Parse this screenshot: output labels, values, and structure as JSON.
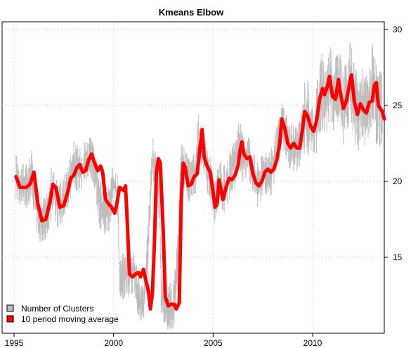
{
  "chart_data": {
    "type": "line",
    "title": "Kmeans Elbow",
    "xlabel": "",
    "ylabel": "",
    "xlim": [
      1994.4,
      2013.6
    ],
    "ylim": [
      10.0,
      30.5
    ],
    "x_ticks": [
      1995,
      2000,
      2005,
      2010
    ],
    "y_ticks": [
      15,
      20,
      25,
      30
    ],
    "y_axis_side": "right",
    "grid": true,
    "legend": "bottom-left",
    "series": [
      {
        "name": "Number of Clusters",
        "kind": "bar",
        "color": "#bdbdbd",
        "keypoints": [
          [
            1995.1,
            20.3
          ],
          [
            1995.4,
            19.6
          ],
          [
            1995.7,
            19.8
          ],
          [
            1995.9,
            20.5
          ],
          [
            1996.1,
            18.5
          ],
          [
            1996.3,
            17.3
          ],
          [
            1996.7,
            17.8
          ],
          [
            1996.9,
            19.6
          ],
          [
            1997.2,
            18.5
          ],
          [
            1997.5,
            18.8
          ],
          [
            1997.8,
            20.2
          ],
          [
            1998.0,
            21.1
          ],
          [
            1998.3,
            20.6
          ],
          [
            1998.6,
            21.4
          ],
          [
            1998.9,
            21.3
          ],
          [
            1999.1,
            20.5
          ],
          [
            1999.3,
            18.5
          ],
          [
            1999.6,
            18.0
          ],
          [
            1999.8,
            18.3
          ],
          [
            2000.0,
            19.8
          ],
          [
            2000.2,
            19.2
          ],
          [
            2000.3,
            13.7
          ],
          [
            2000.6,
            13.8
          ],
          [
            2000.9,
            14.1
          ],
          [
            2001.1,
            13.7
          ],
          [
            2001.3,
            12.0
          ],
          [
            2001.5,
            11.8
          ],
          [
            2001.7,
            15.0
          ],
          [
            2001.9,
            20.5
          ],
          [
            2002.0,
            21.4
          ],
          [
            2002.3,
            19.0
          ],
          [
            2002.4,
            12.3
          ],
          [
            2002.7,
            11.8
          ],
          [
            2002.9,
            11.8
          ],
          [
            2003.0,
            11.6
          ],
          [
            2003.2,
            14.5
          ],
          [
            2003.4,
            21.3
          ],
          [
            2003.6,
            20.6
          ],
          [
            2003.8,
            19.9
          ],
          [
            2004.1,
            20.5
          ],
          [
            2004.3,
            23.3
          ],
          [
            2004.5,
            21.8
          ],
          [
            2004.8,
            20.4
          ],
          [
            2005.0,
            19.3
          ],
          [
            2005.1,
            18.4
          ],
          [
            2005.3,
            20.1
          ],
          [
            2005.5,
            19.4
          ],
          [
            2005.7,
            19.8
          ],
          [
            2005.9,
            20.5
          ],
          [
            2006.1,
            21.2
          ],
          [
            2006.3,
            22.8
          ],
          [
            2006.5,
            21.5
          ],
          [
            2006.8,
            21.7
          ],
          [
            2007.0,
            20.6
          ],
          [
            2007.2,
            19.7
          ],
          [
            2007.4,
            20.0
          ],
          [
            2007.6,
            20.8
          ],
          [
            2007.9,
            20.6
          ],
          [
            2008.1,
            21.5
          ],
          [
            2008.3,
            22.6
          ],
          [
            2008.5,
            24.0
          ],
          [
            2008.7,
            22.6
          ],
          [
            2008.9,
            22.2
          ],
          [
            2009.1,
            22.3
          ],
          [
            2009.3,
            22.2
          ],
          [
            2009.5,
            23.8
          ],
          [
            2009.7,
            24.6
          ],
          [
            2009.9,
            23.6
          ],
          [
            2010.1,
            23.2
          ],
          [
            2010.3,
            25.1
          ],
          [
            2010.5,
            26.0
          ],
          [
            2010.7,
            25.6
          ],
          [
            2010.9,
            26.8
          ],
          [
            2011.0,
            25.6
          ],
          [
            2011.3,
            26.6
          ],
          [
            2011.5,
            24.8
          ],
          [
            2011.7,
            25.3
          ],
          [
            2011.9,
            26.9
          ],
          [
            2012.1,
            25.1
          ],
          [
            2012.3,
            24.5
          ],
          [
            2012.5,
            25.1
          ],
          [
            2012.7,
            24.6
          ],
          [
            2012.9,
            25.3
          ],
          [
            2013.0,
            26.6
          ],
          [
            2013.2,
            25.0
          ],
          [
            2013.4,
            24.8
          ],
          [
            2013.5,
            24.3
          ]
        ]
      },
      {
        "name": "10 period moving average",
        "kind": "line",
        "color": "#ff0000",
        "points": [
          [
            1995.1,
            20.3
          ],
          [
            1995.3,
            19.6
          ],
          [
            1995.6,
            19.6
          ],
          [
            1995.8,
            19.8
          ],
          [
            1996.0,
            20.6
          ],
          [
            1996.2,
            18.5
          ],
          [
            1996.4,
            17.4
          ],
          [
            1996.6,
            17.5
          ],
          [
            1996.8,
            18.6
          ],
          [
            1996.95,
            19.8
          ],
          [
            1997.1,
            19.6
          ],
          [
            1997.3,
            18.3
          ],
          [
            1997.5,
            18.4
          ],
          [
            1997.7,
            19.3
          ],
          [
            1997.85,
            20.2
          ],
          [
            1998.0,
            20.4
          ],
          [
            1998.15,
            20.9
          ],
          [
            1998.3,
            21.1
          ],
          [
            1998.45,
            20.6
          ],
          [
            1998.6,
            20.7
          ],
          [
            1998.75,
            21.4
          ],
          [
            1998.9,
            21.8
          ],
          [
            1999.05,
            21.2
          ],
          [
            1999.2,
            20.7
          ],
          [
            1999.35,
            21.0
          ],
          [
            1999.45,
            20.6
          ],
          [
            1999.6,
            18.8
          ],
          [
            1999.75,
            18.5
          ],
          [
            1999.9,
            18.3
          ],
          [
            2000.05,
            17.9
          ],
          [
            2000.15,
            18.4
          ],
          [
            2000.3,
            19.6
          ],
          [
            2000.5,
            19.4
          ],
          [
            2000.6,
            19.7
          ],
          [
            2000.7,
            17.0
          ],
          [
            2000.8,
            13.9
          ],
          [
            2000.95,
            13.7
          ],
          [
            2001.1,
            13.9
          ],
          [
            2001.25,
            14.0
          ],
          [
            2001.35,
            13.7
          ],
          [
            2001.5,
            14.2
          ],
          [
            2001.6,
            13.6
          ],
          [
            2001.75,
            12.8
          ],
          [
            2001.85,
            11.6
          ],
          [
            2001.95,
            12.6
          ],
          [
            2002.05,
            15.8
          ],
          [
            2002.15,
            20.5
          ],
          [
            2002.25,
            21.5
          ],
          [
            2002.35,
            21.2
          ],
          [
            2002.5,
            16.5
          ],
          [
            2002.6,
            12.4
          ],
          [
            2002.75,
            11.8
          ],
          [
            2002.9,
            11.9
          ],
          [
            2003.05,
            11.9
          ],
          [
            2003.15,
            11.6
          ],
          [
            2003.3,
            12.0
          ],
          [
            2003.4,
            18.8
          ],
          [
            2003.5,
            21.2
          ],
          [
            2003.6,
            20.9
          ],
          [
            2003.75,
            19.7
          ],
          [
            2003.9,
            19.8
          ],
          [
            2004.05,
            20.3
          ],
          [
            2004.2,
            20.5
          ],
          [
            2004.35,
            22.3
          ],
          [
            2004.45,
            23.4
          ],
          [
            2004.55,
            21.6
          ],
          [
            2004.7,
            21.0
          ],
          [
            2004.85,
            20.6
          ],
          [
            2005.0,
            19.3
          ],
          [
            2005.1,
            18.3
          ],
          [
            2005.2,
            18.5
          ],
          [
            2005.3,
            20.1
          ],
          [
            2005.4,
            19.4
          ],
          [
            2005.5,
            18.8
          ],
          [
            2005.65,
            19.6
          ],
          [
            2005.8,
            20.2
          ],
          [
            2005.95,
            20.1
          ],
          [
            2006.1,
            20.4
          ],
          [
            2006.25,
            21.0
          ],
          [
            2006.35,
            22.0
          ],
          [
            2006.45,
            22.6
          ],
          [
            2006.55,
            21.8
          ],
          [
            2006.7,
            21.5
          ],
          [
            2006.85,
            21.6
          ],
          [
            2007.0,
            20.5
          ],
          [
            2007.15,
            19.9
          ],
          [
            2007.3,
            19.7
          ],
          [
            2007.45,
            20.0
          ],
          [
            2007.6,
            20.6
          ],
          [
            2007.75,
            20.8
          ],
          [
            2007.9,
            20.6
          ],
          [
            2008.05,
            20.8
          ],
          [
            2008.2,
            21.4
          ],
          [
            2008.35,
            22.5
          ],
          [
            2008.45,
            24.1
          ],
          [
            2008.6,
            23.5
          ],
          [
            2008.75,
            22.5
          ],
          [
            2008.9,
            22.2
          ],
          [
            2009.05,
            22.5
          ],
          [
            2009.2,
            22.2
          ],
          [
            2009.35,
            22.2
          ],
          [
            2009.5,
            23.5
          ],
          [
            2009.6,
            24.6
          ],
          [
            2009.75,
            24.3
          ],
          [
            2009.9,
            23.6
          ],
          [
            2010.05,
            23.3
          ],
          [
            2010.2,
            24.0
          ],
          [
            2010.35,
            25.4
          ],
          [
            2010.5,
            26.1
          ],
          [
            2010.6,
            25.7
          ],
          [
            2010.75,
            26.3
          ],
          [
            2010.85,
            26.9
          ],
          [
            2011.0,
            25.6
          ],
          [
            2011.15,
            25.4
          ],
          [
            2011.3,
            26.7
          ],
          [
            2011.4,
            25.8
          ],
          [
            2011.55,
            24.8
          ],
          [
            2011.7,
            25.3
          ],
          [
            2011.85,
            26.4
          ],
          [
            2011.95,
            27.0
          ],
          [
            2012.1,
            25.2
          ],
          [
            2012.25,
            24.4
          ],
          [
            2012.4,
            25.1
          ],
          [
            2012.55,
            24.7
          ],
          [
            2012.7,
            24.5
          ],
          [
            2012.85,
            25.2
          ],
          [
            2013.0,
            25.3
          ],
          [
            2013.1,
            26.3
          ],
          [
            2013.2,
            26.5
          ],
          [
            2013.3,
            25.0
          ],
          [
            2013.4,
            24.8
          ],
          [
            2013.5,
            24.6
          ],
          [
            2013.6,
            24.1
          ]
        ]
      }
    ]
  }
}
